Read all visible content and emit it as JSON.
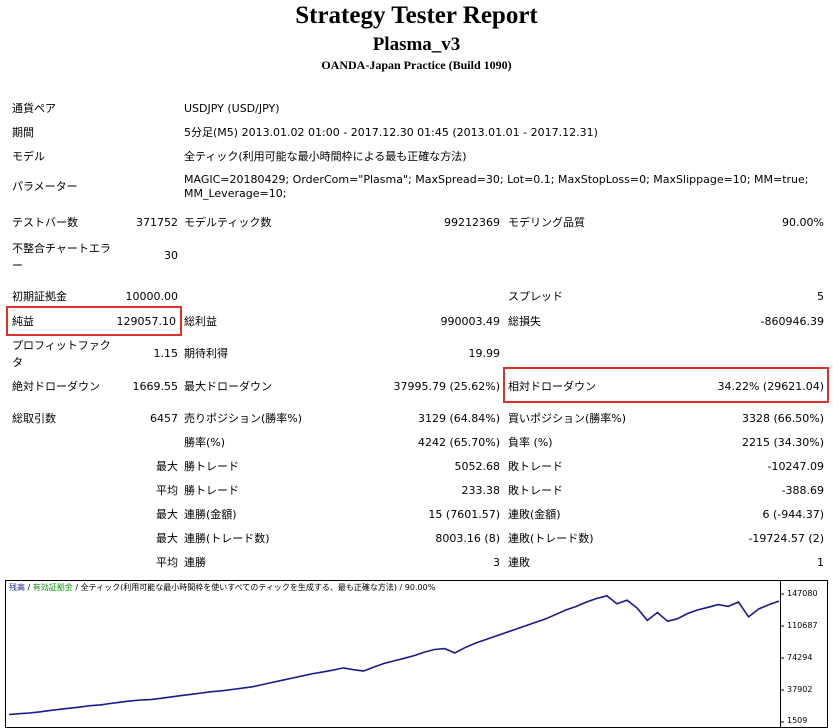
{
  "report": {
    "title": "Strategy Tester Report",
    "ea_name": "Plasma_v3",
    "broker": "OANDA-Japan Practice (Build 1090)"
  },
  "info": {
    "symbol_label": "通貨ペア",
    "symbol_value": "USDJPY (USD/JPY)",
    "period_label": "期間",
    "period_value": "5分足(M5) 2013.01.02 01:00 - 2017.12.30 01:45 (2013.01.01 - 2017.12.31)",
    "model_label": "モデル",
    "model_value": "全ティック(利用可能な最小時間枠による最も正確な方法)",
    "params_label": "パラメーター",
    "params_line1": "MAGIC=20180429; OrderCom=\"Plasma\"; MaxSpread=30; Lot=0.1; MaxStopLoss=0; MaxSlippage=10; MM=true;",
    "params_line2": "MM_Leverage=10;"
  },
  "stats": {
    "bars_label": "テストバー数",
    "bars_value": "371752",
    "ticks_label": "モデルティック数",
    "ticks_value": "99212369",
    "quality_label": "モデリング品質",
    "quality_value": "90.00%",
    "mismatch_label": "不整合チャートエラー",
    "mismatch_value": "30",
    "deposit_label": "初期証拠金",
    "deposit_value": "10000.00",
    "spread_label": "スプレッド",
    "spread_value": "5",
    "net_profit_label": "純益",
    "net_profit_value": "129057.10",
    "gross_profit_label": "総利益",
    "gross_profit_value": "990003.49",
    "gross_loss_label": "総損失",
    "gross_loss_value": "-860946.39",
    "profit_factor_label": "プロフィットファクタ",
    "profit_factor_value": "1.15",
    "expected_payoff_label": "期待利得",
    "expected_payoff_value": "19.99",
    "abs_dd_label": "絶対ドローダウン",
    "abs_dd_value": "1669.55",
    "max_dd_label": "最大ドローダウン",
    "max_dd_value": "37995.79 (25.62%)",
    "rel_dd_label": "相対ドローダウン",
    "rel_dd_value": "34.22% (29621.04)",
    "total_trades_label": "総取引数",
    "total_trades_value": "6457",
    "short_label": "売りポジション(勝率%)",
    "short_value": "3129 (64.84%)",
    "long_label": "買いポジション(勝率%)",
    "long_value": "3328 (66.50%)",
    "win_rate_label": "勝率(%)",
    "win_rate_value": "4242 (65.70%)",
    "loss_rate_label": "負率 (%)",
    "loss_rate_value": "2215 (34.30%)",
    "largest_prefix": "最大",
    "largest_win_label": "勝トレード",
    "largest_win_value": "5052.68",
    "largest_loss_label": "敗トレード",
    "largest_loss_value": "-10247.09",
    "average_prefix": "平均",
    "avg_win_label": "勝トレード",
    "avg_win_value": "233.38",
    "avg_loss_label": "敗トレード",
    "avg_loss_value": "-388.69",
    "max_prefix1": "最大",
    "cons_wins_money_label": "連勝(金額)",
    "cons_wins_money_value": "15 (7601.57)",
    "cons_losses_money_label": "連敗(金額)",
    "cons_losses_money_value": "6 (-944.37)",
    "max_prefix2": "最大",
    "cons_profit_count_label": "連勝(トレード数)",
    "cons_profit_count_value": "8003.16 (8)",
    "cons_loss_count_label": "連敗(トレード数)",
    "cons_loss_count_value": "-19724.57 (2)",
    "avg_prefix2": "平均",
    "avg_cons_wins_label": "連勝",
    "avg_cons_wins_value": "3",
    "avg_cons_losses_label": "連敗",
    "avg_cons_losses_value": "1"
  },
  "chart_data": {
    "type": "line",
    "legend_balance": "残高",
    "legend_equity": "有効証拠金",
    "legend_rest": "全ティック(利用可能な最小時間枠を使いすべてのティックを生成する、最も正確な方法)",
    "legend_quality": "90.00%",
    "y_ticks": [
      "147080",
      "110687",
      "74294",
      "37902",
      "1509"
    ],
    "ylim": [
      1509,
      147080
    ],
    "series_color": "#1a1a8c",
    "series": [
      {
        "name": "残高",
        "values": [
          10000,
          11000,
          11800,
          13000,
          14500,
          16000,
          17200,
          18500,
          20000,
          21000,
          22500,
          24000,
          25500,
          26500,
          27000,
          28500,
          30000,
          31500,
          33000,
          34500,
          36000,
          37000,
          38500,
          40000,
          41500,
          44000,
          46500,
          49000,
          51500,
          54000,
          56500,
          58500,
          60500,
          63000,
          61000,
          59500,
          64000,
          68000,
          71000,
          74000,
          77000,
          81000,
          84000,
          85000,
          80000,
          86000,
          91000,
          95000,
          99000,
          103000,
          107000,
          111000,
          115000,
          119000,
          124000,
          129000,
          133000,
          138000,
          142000,
          145000,
          136000,
          140000,
          131000,
          117000,
          126000,
          116000,
          119000,
          125000,
          129000,
          132000,
          135000,
          133000,
          138000,
          121000,
          130000,
          135000,
          139057
        ]
      }
    ]
  }
}
